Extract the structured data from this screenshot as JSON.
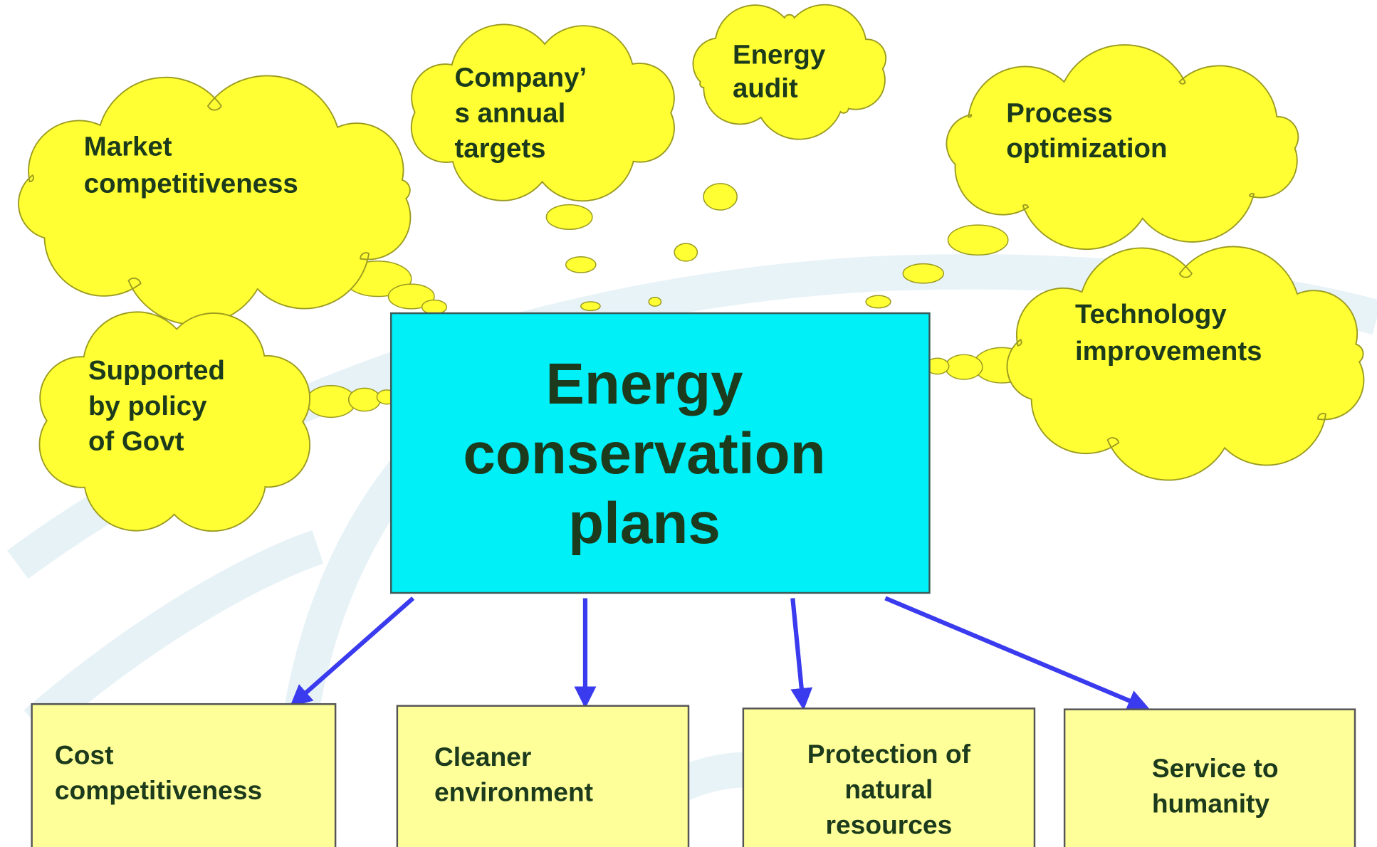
{
  "center": {
    "lines": [
      "Energy",
      "conservation",
      "plans"
    ]
  },
  "clouds": [
    {
      "lines": [
        "Market",
        "competitiveness"
      ]
    },
    {
      "lines": [
        "Company’",
        "s annual",
        "targets"
      ]
    },
    {
      "lines": [
        "Energy",
        "audit"
      ]
    },
    {
      "lines": [
        "Process",
        "optimization"
      ]
    },
    {
      "lines": [
        "Technology",
        "improvements"
      ]
    },
    {
      "lines": [
        "Supported",
        "by policy",
        "of Govt"
      ]
    }
  ],
  "outcomes": [
    {
      "lines": [
        "Cost",
        "competitiveness"
      ]
    },
    {
      "lines": [
        "Cleaner",
        "environment"
      ]
    },
    {
      "lines": [
        "Protection of",
        "natural",
        "resources"
      ]
    },
    {
      "lines": [
        "Service to",
        "humanity"
      ]
    }
  ]
}
